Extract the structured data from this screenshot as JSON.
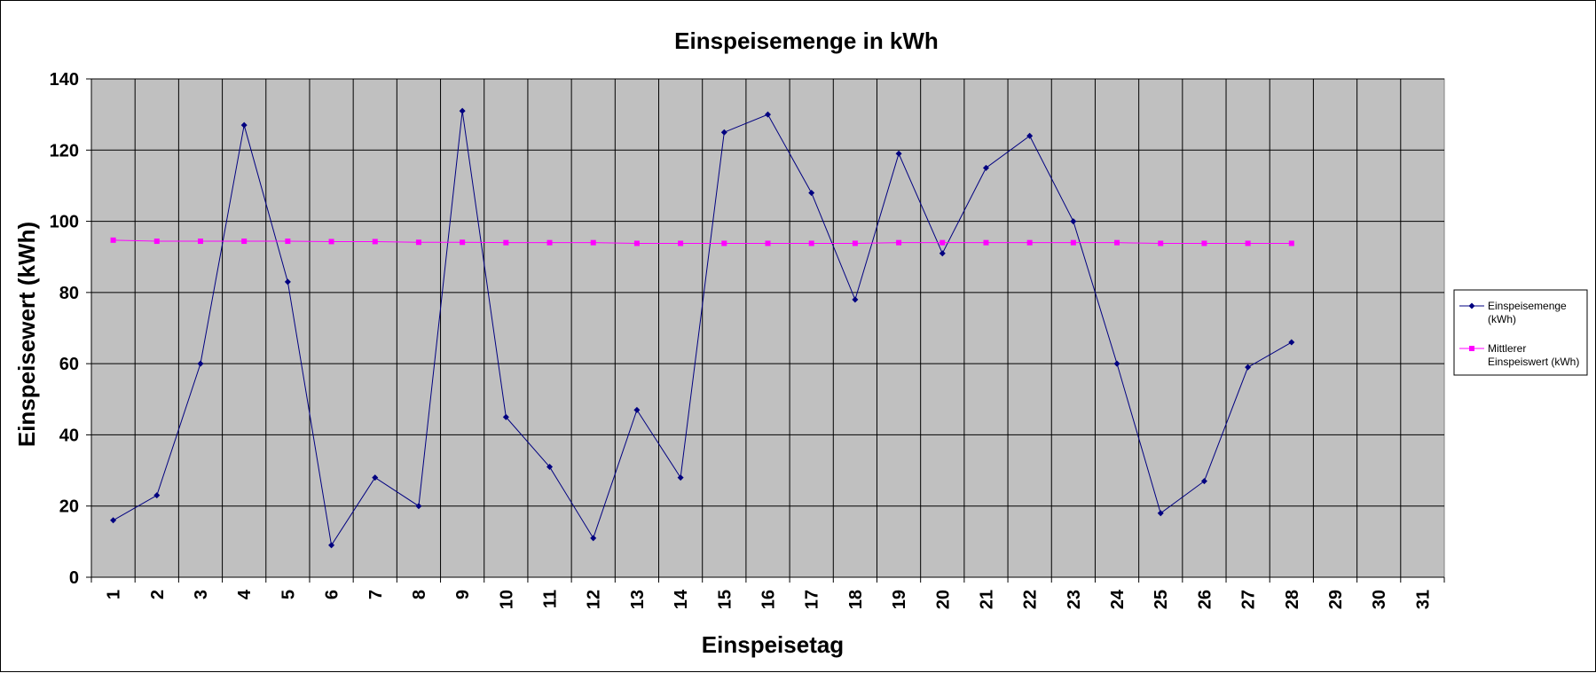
{
  "chart_data": {
    "type": "line",
    "title": "Einspeisemenge in kWh",
    "xlabel": "Einspeisetag",
    "ylabel": "Einspeisewert  (kWh)",
    "ylim": [
      0,
      140
    ],
    "yticks": [
      0,
      20,
      40,
      60,
      80,
      100,
      120,
      140
    ],
    "categories": [
      "1",
      "2",
      "3",
      "4",
      "5",
      "6",
      "7",
      "8",
      "9",
      "10",
      "11",
      "12",
      "13",
      "14",
      "15",
      "16",
      "17",
      "18",
      "19",
      "20",
      "21",
      "22",
      "23",
      "24",
      "25",
      "26",
      "27",
      "28",
      "29",
      "30",
      "31"
    ],
    "grid": true,
    "plot_background": "#c0c0c0",
    "legend_position": "right",
    "series": [
      {
        "name": "Einspeisemenge (kWh)",
        "legend_lines": [
          "Einspeisemenge",
          "(kWh)"
        ],
        "color": "#000080",
        "marker": "diamond",
        "values": [
          16,
          23,
          60,
          127,
          83,
          9,
          28,
          20,
          131,
          45,
          31,
          11,
          47,
          28,
          125,
          130,
          108,
          78,
          119,
          91,
          115,
          124,
          100,
          60,
          18,
          27,
          59,
          66,
          null,
          null,
          null
        ]
      },
      {
        "name": "Mittlerer Einspeiswert (kWh)",
        "legend_lines": [
          "Mittlerer",
          "Einspeiswert (kWh)"
        ],
        "color": "#ff00ff",
        "marker": "square",
        "values": [
          94.7,
          94.4,
          94.4,
          94.4,
          94.4,
          94.3,
          94.3,
          94.1,
          94.1,
          94.0,
          94.0,
          94.0,
          93.8,
          93.8,
          93.8,
          93.8,
          93.8,
          93.8,
          94.0,
          94.0,
          94.0,
          94.0,
          94.0,
          94.0,
          93.8,
          93.8,
          93.8,
          93.8,
          null,
          null,
          null
        ]
      }
    ]
  }
}
